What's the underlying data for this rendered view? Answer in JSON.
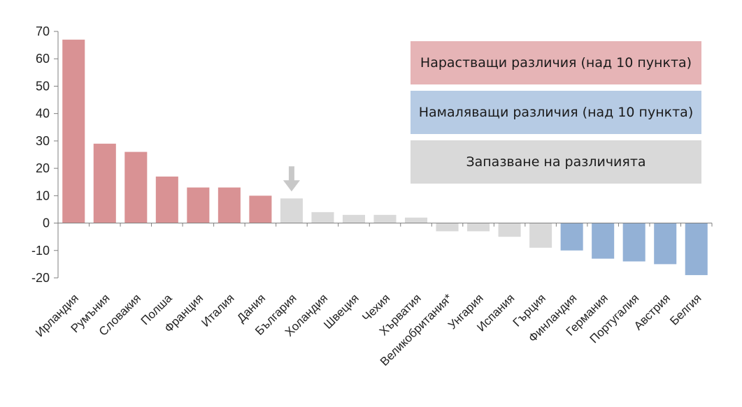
{
  "chart_data": {
    "type": "bar",
    "categories": [
      "Ирландия",
      "Румъния",
      "Словакия",
      "Полша",
      "Франция",
      "Италия",
      "Дания",
      "България",
      "Холандия",
      "Швеция",
      "Чехия",
      "Хърватия",
      "Великобритания*",
      "Унгария",
      "Испания",
      "Гърция",
      "Финландия",
      "Германия",
      "Португалия",
      "Австрия",
      "Белгия"
    ],
    "values": [
      67,
      29,
      26,
      17,
      13,
      13,
      10,
      9,
      4,
      3,
      3,
      2,
      -3,
      -3,
      -5,
      -9,
      -10,
      -13,
      -14,
      -15,
      -19
    ],
    "groups": [
      "increase",
      "increase",
      "increase",
      "increase",
      "increase",
      "increase",
      "increase",
      "stable",
      "stable",
      "stable",
      "stable",
      "stable",
      "stable",
      "stable",
      "stable",
      "stable",
      "decrease",
      "decrease",
      "decrease",
      "decrease",
      "decrease"
    ],
    "ylim": [
      -20,
      70
    ],
    "yticks": [
      "70",
      "60",
      "50",
      "40",
      "30",
      "20",
      "10",
      "0",
      "-10",
      "-20"
    ],
    "highlight": {
      "category": "България",
      "marker": "down-arrow-icon"
    },
    "legend": {
      "position": "top-right",
      "items": [
        {
          "label": "Нарастващи различия (над 10 пункта)",
          "color": "#e6b4b6",
          "group": "increase"
        },
        {
          "label": "Намаляващи различия (над 10 пункта)",
          "color": "#b6cbe4",
          "group": "decrease"
        },
        {
          "label": "Запазване на различията",
          "color": "#d9d9d9",
          "group": "stable"
        }
      ]
    },
    "colors": {
      "increase": "#d99294",
      "decrease": "#93b1d6",
      "stable": "#d9d9d9",
      "arrow": "#c8c8c8",
      "axis": "#7f7f7f"
    }
  }
}
